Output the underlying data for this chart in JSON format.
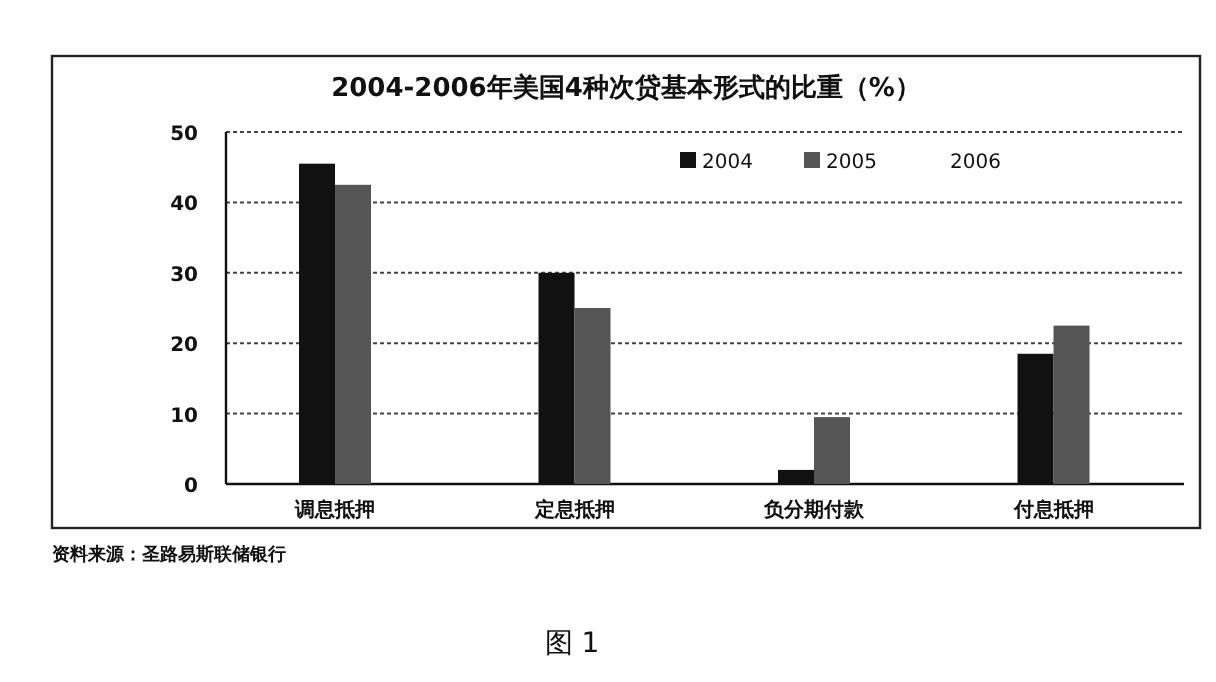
{
  "chart_data": {
    "type": "bar",
    "title": "2004-2006年美国4种次贷基本形式的比重（%）",
    "categories": [
      "调息抵押",
      "定息抵押",
      "负分期付款",
      "付息抵押"
    ],
    "series": [
      {
        "name": "2004",
        "color": "#111111",
        "values": [
          45.5,
          30,
          2,
          18.5
        ]
      },
      {
        "name": "2005",
        "color": "#555555",
        "values": [
          42.5,
          25,
          9.5,
          22.5
        ]
      },
      {
        "name": "2006",
        "values": [
          null,
          null,
          null,
          null
        ]
      }
    ],
    "ylim": [
      0,
      50
    ],
    "yticks": [
      0,
      10,
      20,
      30,
      40,
      50
    ],
    "grid": "y",
    "legend": "top right",
    "annotations": [
      "资料来源：圣路易斯联储银行",
      "图 1"
    ]
  }
}
